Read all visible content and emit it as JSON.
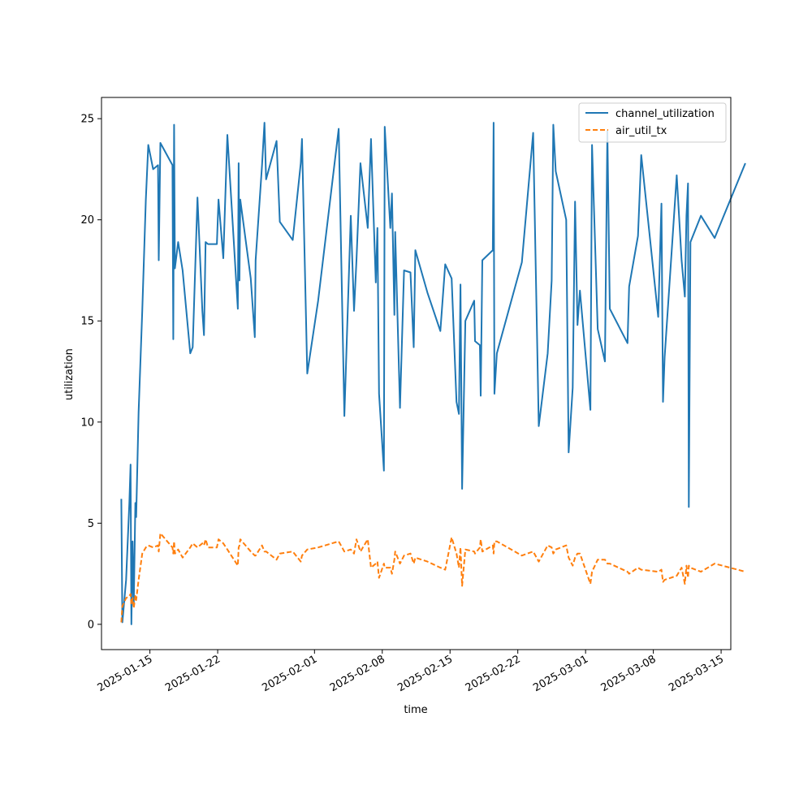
{
  "chart_data": {
    "type": "line",
    "xlabel": "time",
    "ylabel": "utilization",
    "x_axis_type": "date",
    "xlim": [
      "2025-01-10T00:00",
      "2025-03-16T00:00"
    ],
    "ylim": [
      -1.25,
      26.05
    ],
    "yticks": [
      0,
      5,
      10,
      15,
      20,
      25
    ],
    "xticks": [
      "2025-01-15",
      "2025-01-22",
      "2025-02-01",
      "2025-02-08",
      "2025-02-15",
      "2025-02-22",
      "2025-03-01",
      "2025-03-08",
      "2025-03-15"
    ],
    "grid": false,
    "legend_position": "upper right",
    "series": [
      {
        "name": "channel_utilization",
        "color": "#1f77b4",
        "style": "solid",
        "points": [
          [
            "2025-01-12T01:12",
            6.2
          ],
          [
            "2025-01-12T03:48",
            0.1
          ],
          [
            "2025-01-12T13:00",
            2.2
          ],
          [
            "2025-01-12T21:00",
            6.0
          ],
          [
            "2025-01-13T00:00",
            7.9
          ],
          [
            "2025-01-13T02:00",
            0.0
          ],
          [
            "2025-01-13T05:00",
            4.1
          ],
          [
            "2025-01-13T08:00",
            0.9
          ],
          [
            "2025-01-13T12:00",
            6.0
          ],
          [
            "2025-01-13T14:00",
            5.3
          ],
          [
            "2025-01-13T20:00",
            10.5
          ],
          [
            "2025-01-14T05:00",
            15.5
          ],
          [
            "2025-01-14T14:00",
            21.0
          ],
          [
            "2025-01-14T20:00",
            23.7
          ],
          [
            "2025-01-15T08:00",
            22.5
          ],
          [
            "2025-01-15T20:00",
            22.7
          ],
          [
            "2025-01-15T22:00",
            18.0
          ],
          [
            "2025-01-16T02:00",
            23.8
          ],
          [
            "2025-01-17T08:00",
            22.7
          ],
          [
            "2025-01-17T10:00",
            14.1
          ],
          [
            "2025-01-17T12:00",
            24.7
          ],
          [
            "2025-01-17T14:00",
            17.6
          ],
          [
            "2025-01-17T22:00",
            18.9
          ],
          [
            "2025-01-18T09:00",
            17.5
          ],
          [
            "2025-01-19T04:00",
            13.4
          ],
          [
            "2025-01-19T10:00",
            13.7
          ],
          [
            "2025-01-19T22:00",
            21.1
          ],
          [
            "2025-01-20T10:00",
            15.5
          ],
          [
            "2025-01-20T14:00",
            14.3
          ],
          [
            "2025-01-20T18:00",
            18.9
          ],
          [
            "2025-01-21T00:00",
            18.8
          ],
          [
            "2025-01-21T22:00",
            18.8
          ],
          [
            "2025-01-22T02:00",
            21.0
          ],
          [
            "2025-01-22T14:00",
            18.1
          ],
          [
            "2025-01-23T00:00",
            24.2
          ],
          [
            "2025-01-24T02:00",
            15.6
          ],
          [
            "2025-01-24T04:00",
            22.8
          ],
          [
            "2025-01-24T06:00",
            17.0
          ],
          [
            "2025-01-24T08:00",
            21.0
          ],
          [
            "2025-01-25T10:00",
            17.1
          ],
          [
            "2025-01-25T20:00",
            14.2
          ],
          [
            "2025-01-25T22:00",
            18.0
          ],
          [
            "2025-01-26T14:00",
            22.7
          ],
          [
            "2025-01-26T20:00",
            24.8
          ],
          [
            "2025-01-27T00:00",
            22.0
          ],
          [
            "2025-01-28T02:00",
            23.9
          ],
          [
            "2025-01-28T10:00",
            19.9
          ],
          [
            "2025-01-29T18:00",
            19.0
          ],
          [
            "2025-01-30T14:00",
            22.8
          ],
          [
            "2025-01-30T17:00",
            24.0
          ],
          [
            "2025-01-31T06:00",
            12.4
          ],
          [
            "2025-02-01T09:00",
            16.0
          ],
          [
            "2025-02-03T12:00",
            24.5
          ],
          [
            "2025-02-04T02:00",
            10.3
          ],
          [
            "2025-02-04T18:00",
            20.2
          ],
          [
            "2025-02-05T02:00",
            15.5
          ],
          [
            "2025-02-05T08:00",
            18.0
          ],
          [
            "2025-02-05T18:00",
            22.8
          ],
          [
            "2025-02-06T12:00",
            19.6
          ],
          [
            "2025-02-06T20:00",
            24.0
          ],
          [
            "2025-02-07T08:00",
            16.9
          ],
          [
            "2025-02-07T12:00",
            19.6
          ],
          [
            "2025-02-07T16:00",
            11.4
          ],
          [
            "2025-02-08T04:00",
            7.6
          ],
          [
            "2025-02-08T06:00",
            24.6
          ],
          [
            "2025-02-08T20:00",
            19.6
          ],
          [
            "2025-02-09T00:00",
            21.3
          ],
          [
            "2025-02-09T06:00",
            15.3
          ],
          [
            "2025-02-09T08:00",
            19.4
          ],
          [
            "2025-02-09T20:00",
            10.7
          ],
          [
            "2025-02-10T06:00",
            17.5
          ],
          [
            "2025-02-10T22:00",
            17.4
          ],
          [
            "2025-02-11T06:00",
            13.7
          ],
          [
            "2025-02-11T10:00",
            18.5
          ],
          [
            "2025-02-12T16:00",
            16.4
          ],
          [
            "2025-02-14T00:00",
            14.5
          ],
          [
            "2025-02-14T12:00",
            17.8
          ],
          [
            "2025-02-15T04:00",
            17.1
          ],
          [
            "2025-02-15T16:00",
            11.0
          ],
          [
            "2025-02-15T22:00",
            10.4
          ],
          [
            "2025-02-16T02:00",
            16.8
          ],
          [
            "2025-02-16T06:00",
            6.7
          ],
          [
            "2025-02-16T14:00",
            15.0
          ],
          [
            "2025-02-17T12:00",
            16.0
          ],
          [
            "2025-02-17T14:00",
            14.0
          ],
          [
            "2025-02-18T02:00",
            13.8
          ],
          [
            "2025-02-18T04:00",
            11.3
          ],
          [
            "2025-02-18T08:00",
            18.0
          ],
          [
            "2025-02-19T10:00",
            18.5
          ],
          [
            "2025-02-19T12:00",
            24.8
          ],
          [
            "2025-02-19T14:00",
            11.4
          ],
          [
            "2025-02-19T20:00",
            13.4
          ],
          [
            "2025-02-22T10:00",
            17.9
          ],
          [
            "2025-02-23T14:00",
            24.3
          ],
          [
            "2025-02-24T04:00",
            9.8
          ],
          [
            "2025-02-25T02:00",
            13.4
          ],
          [
            "2025-02-25T12:00",
            17.0
          ],
          [
            "2025-02-25T16:00",
            24.7
          ],
          [
            "2025-02-25T22:00",
            22.4
          ],
          [
            "2025-02-27T00:00",
            20.0
          ],
          [
            "2025-02-27T06:00",
            8.5
          ],
          [
            "2025-02-27T16:00",
            11.7
          ],
          [
            "2025-02-27T22:00",
            20.9
          ],
          [
            "2025-02-28T04:00",
            14.8
          ],
          [
            "2025-02-28T10:00",
            16.5
          ],
          [
            "2025-03-01T12:00",
            10.6
          ],
          [
            "2025-03-01T16:00",
            23.7
          ],
          [
            "2025-03-02T06:00",
            14.6
          ],
          [
            "2025-03-03T00:00",
            13.0
          ],
          [
            "2025-03-03T06:00",
            24.4
          ],
          [
            "2025-03-03T12:00",
            15.6
          ],
          [
            "2025-03-05T08:00",
            13.9
          ],
          [
            "2025-03-05T12:00",
            16.7
          ],
          [
            "2025-03-06T10:00",
            19.2
          ],
          [
            "2025-03-06T18:00",
            23.2
          ],
          [
            "2025-03-08T12:00",
            15.2
          ],
          [
            "2025-03-08T20:00",
            20.8
          ],
          [
            "2025-03-09T00:00",
            11.0
          ],
          [
            "2025-03-09T04:00",
            13.2
          ],
          [
            "2025-03-10T10:00",
            22.2
          ],
          [
            "2025-03-10T22:00",
            18.0
          ],
          [
            "2025-03-11T06:00",
            16.2
          ],
          [
            "2025-03-11T10:00",
            20.2
          ],
          [
            "2025-03-11T14:00",
            21.8
          ],
          [
            "2025-03-11T16:00",
            5.8
          ],
          [
            "2025-03-11T20:00",
            18.9
          ],
          [
            "2025-03-12T22:00",
            20.2
          ],
          [
            "2025-03-14T08:00",
            19.1
          ],
          [
            "2025-03-17T12:00",
            22.8
          ]
        ]
      },
      {
        "name": "air_util_tx",
        "color": "#ff7f0e",
        "style": "dashed",
        "points": [
          [
            "2025-01-12T01:12",
            0.1
          ],
          [
            "2025-01-12T03:48",
            0.9
          ],
          [
            "2025-01-12T13:00",
            1.3
          ],
          [
            "2025-01-12T21:00",
            1.4
          ],
          [
            "2025-01-13T00:00",
            1.5
          ],
          [
            "2025-01-13T02:00",
            1.0
          ],
          [
            "2025-01-13T05:00",
            1.3
          ],
          [
            "2025-01-13T08:00",
            0.8
          ],
          [
            "2025-01-13T12:00",
            1.4
          ],
          [
            "2025-01-13T14:00",
            1.2
          ],
          [
            "2025-01-13T20:00",
            2.2
          ],
          [
            "2025-01-14T05:00",
            3.5
          ],
          [
            "2025-01-14T14:00",
            3.8
          ],
          [
            "2025-01-14T20:00",
            3.9
          ],
          [
            "2025-01-15T08:00",
            3.8
          ],
          [
            "2025-01-15T20:00",
            3.9
          ],
          [
            "2025-01-15T22:00",
            3.6
          ],
          [
            "2025-01-16T02:00",
            4.5
          ],
          [
            "2025-01-17T08:00",
            3.8
          ],
          [
            "2025-01-17T10:00",
            3.5
          ],
          [
            "2025-01-17T12:00",
            4.1
          ],
          [
            "2025-01-17T14:00",
            3.5
          ],
          [
            "2025-01-17T22:00",
            3.7
          ],
          [
            "2025-01-18T09:00",
            3.3
          ],
          [
            "2025-01-19T04:00",
            3.8
          ],
          [
            "2025-01-19T10:00",
            4.0
          ],
          [
            "2025-01-19T22:00",
            3.8
          ],
          [
            "2025-01-20T10:00",
            4.0
          ],
          [
            "2025-01-20T14:00",
            3.9
          ],
          [
            "2025-01-20T18:00",
            4.2
          ],
          [
            "2025-01-21T00:00",
            3.8
          ],
          [
            "2025-01-21T22:00",
            3.8
          ],
          [
            "2025-01-22T02:00",
            4.2
          ],
          [
            "2025-01-22T14:00",
            4.0
          ],
          [
            "2025-01-23T00:00",
            3.7
          ],
          [
            "2025-01-24T02:00",
            2.9
          ],
          [
            "2025-01-24T04:00",
            3.8
          ],
          [
            "2025-01-24T06:00",
            3.9
          ],
          [
            "2025-01-24T08:00",
            4.2
          ],
          [
            "2025-01-25T10:00",
            3.6
          ],
          [
            "2025-01-25T20:00",
            3.4
          ],
          [
            "2025-01-25T22:00",
            3.4
          ],
          [
            "2025-01-26T14:00",
            3.9
          ],
          [
            "2025-01-26T20:00",
            3.6
          ],
          [
            "2025-01-27T00:00",
            3.6
          ],
          [
            "2025-01-28T02:00",
            3.2
          ],
          [
            "2025-01-28T10:00",
            3.5
          ],
          [
            "2025-01-29T18:00",
            3.6
          ],
          [
            "2025-01-30T14:00",
            3.1
          ],
          [
            "2025-01-30T17:00",
            3.4
          ],
          [
            "2025-01-31T06:00",
            3.7
          ],
          [
            "2025-02-01T09:00",
            3.8
          ],
          [
            "2025-02-03T12:00",
            4.1
          ],
          [
            "2025-02-04T02:00",
            3.6
          ],
          [
            "2025-02-04T18:00",
            3.7
          ],
          [
            "2025-02-05T02:00",
            3.5
          ],
          [
            "2025-02-05T08:00",
            4.2
          ],
          [
            "2025-02-05T18:00",
            3.6
          ],
          [
            "2025-02-06T12:00",
            4.2
          ],
          [
            "2025-02-06T20:00",
            2.8
          ],
          [
            "2025-02-07T08:00",
            3.0
          ],
          [
            "2025-02-07T12:00",
            3.1
          ],
          [
            "2025-02-07T16:00",
            2.3
          ],
          [
            "2025-02-08T04:00",
            3.0
          ],
          [
            "2025-02-08T06:00",
            2.8
          ],
          [
            "2025-02-08T20:00",
            2.8
          ],
          [
            "2025-02-09T00:00",
            2.5
          ],
          [
            "2025-02-09T06:00",
            3.2
          ],
          [
            "2025-02-09T08:00",
            3.6
          ],
          [
            "2025-02-09T20:00",
            3.0
          ],
          [
            "2025-02-10T06:00",
            3.4
          ],
          [
            "2025-02-10T22:00",
            3.5
          ],
          [
            "2025-02-11T06:00",
            3.0
          ],
          [
            "2025-02-11T10:00",
            3.3
          ],
          [
            "2025-02-12T16:00",
            3.1
          ],
          [
            "2025-02-14T00:00",
            2.8
          ],
          [
            "2025-02-14T12:00",
            2.7
          ],
          [
            "2025-02-15T04:00",
            4.3
          ],
          [
            "2025-02-15T16:00",
            3.5
          ],
          [
            "2025-02-15T22:00",
            2.8
          ],
          [
            "2025-02-16T02:00",
            3.8
          ],
          [
            "2025-02-16T06:00",
            1.9
          ],
          [
            "2025-02-16T14:00",
            3.7
          ],
          [
            "2025-02-17T12:00",
            3.6
          ],
          [
            "2025-02-17T14:00",
            3.5
          ],
          [
            "2025-02-18T02:00",
            3.8
          ],
          [
            "2025-02-18T04:00",
            4.2
          ],
          [
            "2025-02-18T08:00",
            3.6
          ],
          [
            "2025-02-19T10:00",
            3.9
          ],
          [
            "2025-02-19T12:00",
            3.5
          ],
          [
            "2025-02-19T14:00",
            4.1
          ],
          [
            "2025-02-19T20:00",
            4.1
          ],
          [
            "2025-02-22T10:00",
            3.4
          ],
          [
            "2025-02-23T14:00",
            3.6
          ],
          [
            "2025-02-24T04:00",
            3.1
          ],
          [
            "2025-02-25T02:00",
            3.9
          ],
          [
            "2025-02-25T12:00",
            3.8
          ],
          [
            "2025-02-25T16:00",
            3.5
          ],
          [
            "2025-02-25T22:00",
            3.7
          ],
          [
            "2025-02-27T00:00",
            3.9
          ],
          [
            "2025-02-27T06:00",
            3.3
          ],
          [
            "2025-02-27T16:00",
            2.9
          ],
          [
            "2025-02-27T22:00",
            3.3
          ],
          [
            "2025-02-28T04:00",
            3.5
          ],
          [
            "2025-02-28T10:00",
            3.5
          ],
          [
            "2025-03-01T12:00",
            2.0
          ],
          [
            "2025-03-01T16:00",
            2.6
          ],
          [
            "2025-03-02T06:00",
            3.2
          ],
          [
            "2025-03-03T00:00",
            3.2
          ],
          [
            "2025-03-03T06:00",
            3.0
          ],
          [
            "2025-03-03T12:00",
            3.0
          ],
          [
            "2025-03-05T08:00",
            2.6
          ],
          [
            "2025-03-05T12:00",
            2.5
          ],
          [
            "2025-03-06T10:00",
            2.8
          ],
          [
            "2025-03-06T18:00",
            2.7
          ],
          [
            "2025-03-08T12:00",
            2.6
          ],
          [
            "2025-03-08T20:00",
            2.7
          ],
          [
            "2025-03-09T00:00",
            2.1
          ],
          [
            "2025-03-09T04:00",
            2.2
          ],
          [
            "2025-03-10T10:00",
            2.4
          ],
          [
            "2025-03-10T22:00",
            2.8
          ],
          [
            "2025-03-11T06:00",
            2.0
          ],
          [
            "2025-03-11T10:00",
            2.9
          ],
          [
            "2025-03-11T14:00",
            2.3
          ],
          [
            "2025-03-11T16:00",
            2.9
          ],
          [
            "2025-03-11T20:00",
            2.8
          ],
          [
            "2025-03-12T22:00",
            2.6
          ],
          [
            "2025-03-14T08:00",
            3.0
          ],
          [
            "2025-03-17T12:00",
            2.6
          ]
        ]
      }
    ]
  }
}
